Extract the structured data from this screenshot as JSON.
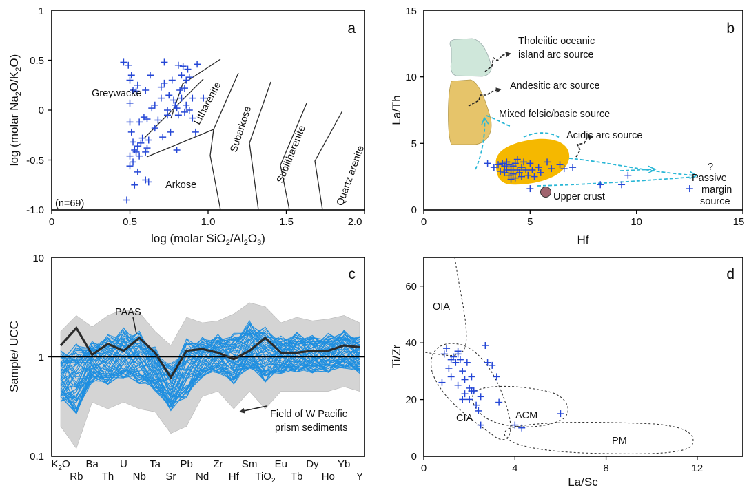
{
  "colors": {
    "marker": "#2547d6",
    "ucc_lines": "#1f8fe0",
    "paas": "#2b2b2b",
    "pacific_field": "#d4d4d4",
    "toa_field": "#cfe7da",
    "andesitic_field": "#e6c46a",
    "acidic_field": "#f5b800",
    "arrow": "#2ab7d6",
    "upper_crust": "#a0646e"
  },
  "panel_a": {
    "label": "a",
    "n_label": "(n=69)",
    "xticks": [
      "0",
      "0.5",
      "1.0",
      "1.5",
      "2.0"
    ],
    "yticks": [
      "1",
      "0.5",
      "0",
      "-0.5",
      "-1.0"
    ],
    "fields": {
      "greywacke": "Greywacke",
      "litharenite": "Litharenite",
      "subarkose": "Subarkose",
      "sublitharenite": "Sublitharenite",
      "quartz_arenite": "Quartz arenite",
      "arkose": "Arkose"
    }
  },
  "panel_b": {
    "label": "b",
    "xticks": [
      "0",
      "5",
      "10",
      "15"
    ],
    "yticks": [
      "15",
      "10",
      "5",
      "0"
    ],
    "fields": {
      "toa_1": "Tholeiitic oceanic",
      "toa_2": "island arc source",
      "andesitic": "Andesitic arc source",
      "mixed": "Mixed felsic/basic source",
      "acidic": "Acidic arc source",
      "upper_crust": "Upper crust",
      "passive_q": "?",
      "passive_1": "Passive",
      "passive_2": "margin",
      "passive_3": "source"
    }
  },
  "panel_c": {
    "label": "c",
    "yticks": [
      "10",
      "1",
      "0.1"
    ],
    "paas": "PAAS",
    "field_1": "Field of W Pacific",
    "field_2": "prism sediments"
  },
  "panel_d": {
    "label": "d",
    "xticks": [
      "0",
      "4",
      "8",
      "12"
    ],
    "yticks": [
      "60",
      "40",
      "20",
      "0"
    ],
    "fields": {
      "oia": "OIA",
      "cia": "CIA",
      "acm": "ACM",
      "pm": "PM"
    }
  },
  "chart_data": [
    {
      "type": "scatter",
      "panel": "a",
      "xlabel": "log (molar SiO2/Al2O3)",
      "ylabel": "log (molar Na2O/K2O)",
      "xlim": [
        0,
        2
      ],
      "ylim": [
        -1,
        1
      ],
      "grid": false,
      "n": 69,
      "points": [
        [
          0.46,
          0.48
        ],
        [
          0.49,
          0.45
        ],
        [
          0.5,
          0.3
        ],
        [
          0.51,
          0.35
        ],
        [
          0.52,
          0.2
        ],
        [
          0.5,
          0.07
        ],
        [
          0.54,
          0.19
        ],
        [
          0.55,
          0.25
        ],
        [
          0.5,
          -0.12
        ],
        [
          0.51,
          -0.22
        ],
        [
          0.52,
          -0.32
        ],
        [
          0.53,
          -0.4
        ],
        [
          0.54,
          -0.42
        ],
        [
          0.52,
          -0.52
        ],
        [
          0.5,
          -0.46
        ],
        [
          0.55,
          -0.36
        ],
        [
          0.57,
          -0.33
        ],
        [
          0.56,
          -0.46
        ],
        [
          0.58,
          -0.28
        ],
        [
          0.59,
          -0.07
        ],
        [
          0.61,
          -0.09
        ],
        [
          0.61,
          -0.38
        ],
        [
          0.6,
          -0.42
        ],
        [
          0.62,
          -0.3
        ],
        [
          0.6,
          0.2
        ],
        [
          0.63,
          0.35
        ],
        [
          0.64,
          0.02
        ],
        [
          0.66,
          0.05
        ],
        [
          0.68,
          -0.1
        ],
        [
          0.7,
          0.12
        ],
        [
          0.7,
          0.23
        ],
        [
          0.72,
          0.27
        ],
        [
          0.72,
          0.48
        ],
        [
          0.74,
          0.0
        ],
        [
          0.74,
          -0.05
        ],
        [
          0.75,
          0.15
        ],
        [
          0.76,
          -0.22
        ],
        [
          0.77,
          0.3
        ],
        [
          0.78,
          0.1
        ],
        [
          0.79,
          0.05
        ],
        [
          0.8,
          0.02
        ],
        [
          0.81,
          0.45
        ],
        [
          0.81,
          -0.05
        ],
        [
          0.82,
          0.2
        ],
        [
          0.83,
          0.12
        ],
        [
          0.83,
          0.35
        ],
        [
          0.84,
          0.44
        ],
        [
          0.85,
          0.22
        ],
        [
          0.85,
          -0.02
        ],
        [
          0.86,
          0.05
        ],
        [
          0.86,
          0.3
        ],
        [
          0.87,
          0.41
        ],
        [
          0.88,
          0.33
        ],
        [
          0.88,
          0.0
        ],
        [
          0.9,
          0.12
        ],
        [
          0.9,
          -0.08
        ],
        [
          0.92,
          -0.22
        ],
        [
          0.93,
          0.46
        ],
        [
          0.97,
          0.12
        ],
        [
          0.8,
          -0.4
        ],
        [
          0.71,
          -0.27
        ],
        [
          0.66,
          -0.18
        ],
        [
          0.56,
          -0.12
        ],
        [
          0.6,
          -0.7
        ],
        [
          0.62,
          -0.72
        ],
        [
          0.55,
          -0.62
        ],
        [
          0.53,
          -0.75
        ],
        [
          0.48,
          -0.9
        ],
        [
          0.5,
          -0.56
        ]
      ]
    },
    {
      "type": "scatter",
      "panel": "b",
      "xlabel": "Hf",
      "ylabel": "La/Th",
      "xlim": [
        0,
        15
      ],
      "ylim": [
        0,
        15
      ],
      "grid": false,
      "points": [
        [
          3.0,
          3.5
        ],
        [
          3.3,
          3.2
        ],
        [
          3.5,
          3.4
        ],
        [
          3.6,
          2.9
        ],
        [
          3.7,
          3.5
        ],
        [
          3.8,
          3.3
        ],
        [
          3.8,
          2.8
        ],
        [
          3.9,
          3.6
        ],
        [
          3.9,
          3.0
        ],
        [
          4.0,
          2.6
        ],
        [
          4.0,
          3.4
        ],
        [
          4.1,
          3.0
        ],
        [
          4.2,
          2.7
        ],
        [
          4.2,
          3.3
        ],
        [
          4.3,
          3.5
        ],
        [
          4.3,
          2.4
        ],
        [
          4.4,
          3.0
        ],
        [
          4.5,
          2.8
        ],
        [
          4.6,
          3.2
        ],
        [
          4.6,
          2.5
        ],
        [
          4.7,
          3.6
        ],
        [
          4.8,
          3.0
        ],
        [
          4.9,
          2.6
        ],
        [
          5.0,
          3.5
        ],
        [
          5.1,
          3.0
        ],
        [
          5.2,
          2.5
        ],
        [
          5.4,
          3.2
        ],
        [
          5.5,
          2.8
        ],
        [
          5.8,
          3.6
        ],
        [
          6.0,
          3.1
        ],
        [
          6.4,
          3.4
        ],
        [
          6.6,
          3.1
        ],
        [
          7.0,
          3.2
        ],
        [
          5.0,
          1.6
        ],
        [
          8.3,
          1.9
        ],
        [
          9.3,
          1.9
        ],
        [
          9.6,
          2.6
        ],
        [
          12.5,
          1.6
        ],
        [
          4.1,
          2.3
        ],
        [
          4.4,
          3.8
        ]
      ],
      "upper_crust": [
        5.8,
        1.4
      ]
    },
    {
      "type": "line",
      "panel": "c",
      "xlabel": "",
      "ylabel": "Sample/ UCC",
      "yscale": "log",
      "ylim": [
        0.1,
        10
      ],
      "categories": [
        "K2O",
        "Rb",
        "Ba",
        "Th",
        "U",
        "Nb",
        "Ta",
        "Sr",
        "Pb",
        "Nd",
        "Zr",
        "Hf",
        "Sm",
        "TiO2",
        "Eu",
        "Tb",
        "Dy",
        "Ho",
        "Yb",
        "Y"
      ],
      "series": [
        {
          "name": "PAAS",
          "values": [
            1.3,
            1.95,
            1.05,
            1.35,
            1.15,
            1.55,
            1.1,
            0.62,
            1.15,
            1.2,
            1.1,
            0.95,
            1.15,
            1.55,
            1.1,
            1.1,
            1.15,
            1.15,
            1.3,
            1.25
          ]
        }
      ],
      "sample_range": {
        "min": [
          0.2,
          0.12,
          0.35,
          0.3,
          0.35,
          0.3,
          0.28,
          0.17,
          0.2,
          0.4,
          0.45,
          0.3,
          0.45,
          0.3,
          0.45,
          0.45,
          0.45,
          0.45,
          0.5,
          0.45
        ],
        "max": [
          1.8,
          2.6,
          2.0,
          2.6,
          3.0,
          2.8,
          1.8,
          1.3,
          2.5,
          2.2,
          2.3,
          2.7,
          3.5,
          3.2,
          2.2,
          2.5,
          2.3,
          2.4,
          2.6,
          2.2
        ]
      }
    },
    {
      "type": "scatter",
      "panel": "d",
      "xlabel": "La/Sc",
      "ylabel": "Ti/Zr",
      "xlim": [
        0,
        14
      ],
      "ylim": [
        0,
        70
      ],
      "grid": false,
      "points": [
        [
          0.8,
          26
        ],
        [
          0.9,
          36
        ],
        [
          1.0,
          38
        ],
        [
          1.1,
          31
        ],
        [
          1.2,
          28
        ],
        [
          1.3,
          35
        ],
        [
          1.4,
          33
        ],
        [
          1.5,
          36
        ],
        [
          1.5,
          25
        ],
        [
          1.6,
          34
        ],
        [
          1.7,
          30
        ],
        [
          1.8,
          27
        ],
        [
          1.8,
          22
        ],
        [
          1.9,
          33
        ],
        [
          2.0,
          24
        ],
        [
          2.0,
          20
        ],
        [
          2.1,
          23
        ],
        [
          2.1,
          28
        ],
        [
          2.2,
          23
        ],
        [
          2.3,
          18
        ],
        [
          2.4,
          16
        ],
        [
          2.5,
          21
        ],
        [
          2.5,
          11
        ],
        [
          2.7,
          39
        ],
        [
          2.8,
          33
        ],
        [
          3.0,
          32
        ],
        [
          3.2,
          28
        ],
        [
          3.3,
          19
        ],
        [
          1.7,
          20
        ],
        [
          4.0,
          11
        ],
        [
          4.3,
          10
        ],
        [
          6.0,
          15
        ],
        [
          1.2,
          34
        ],
        [
          1.5,
          37
        ]
      ]
    }
  ]
}
